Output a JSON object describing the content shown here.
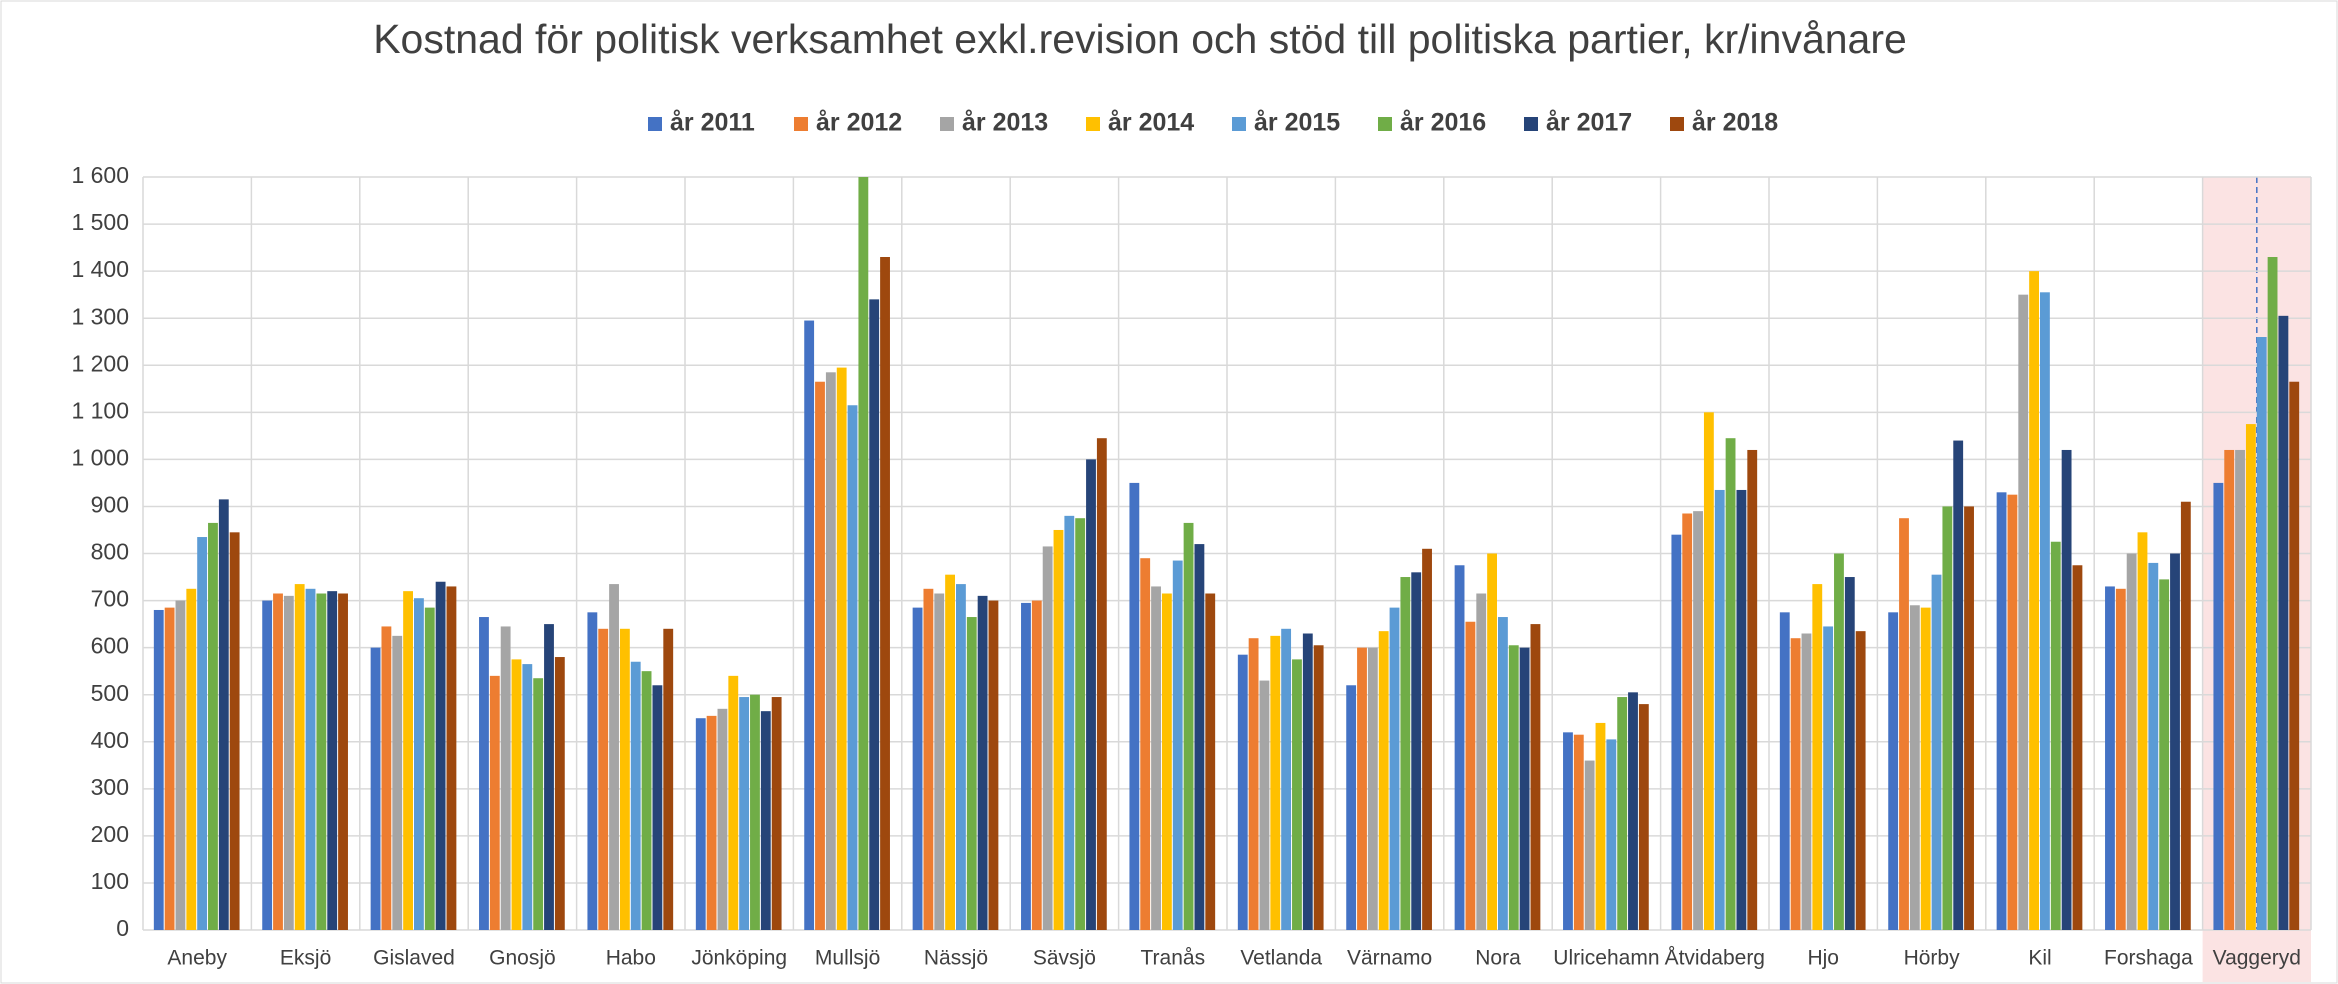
{
  "chart_data": {
    "type": "bar",
    "title": "Kostnad för politisk verksamhet exkl.revision och stöd till politiska partier, kr/invånare",
    "categories": [
      "Aneby",
      "Eksjö",
      "Gislaved",
      "Gnosjö",
      "Habo",
      "Jönköping",
      "Mullsjö",
      "Nässjö",
      "Sävsjö",
      "Tranås",
      "Vetlanda",
      "Värnamo",
      "Nora",
      "Ulricehamn",
      "Åtvidaberg",
      "Hjo",
      "Hörby",
      "Kil",
      "Forshaga",
      "Vaggeryd"
    ],
    "series": [
      {
        "name": "år 2011",
        "color": "#4472c4",
        "values": [
          680,
          700,
          600,
          665,
          675,
          450,
          1295,
          685,
          695,
          950,
          585,
          520,
          775,
          420,
          840,
          675,
          675,
          930,
          730,
          950
        ]
      },
      {
        "name": "år 2012",
        "color": "#ed7d31",
        "values": [
          685,
          715,
          645,
          540,
          640,
          455,
          1165,
          725,
          700,
          790,
          620,
          600,
          655,
          415,
          885,
          620,
          875,
          925,
          725,
          1020
        ]
      },
      {
        "name": "år 2013",
        "color": "#a5a5a5",
        "values": [
          700,
          710,
          625,
          645,
          735,
          470,
          1185,
          715,
          815,
          730,
          530,
          600,
          715,
          360,
          890,
          630,
          690,
          1350,
          800,
          1020
        ]
      },
      {
        "name": "år 2014",
        "color": "#ffc000",
        "values": [
          725,
          735,
          720,
          575,
          640,
          540,
          1195,
          755,
          850,
          715,
          625,
          635,
          800,
          440,
          1100,
          735,
          685,
          1400,
          845,
          1075
        ]
      },
      {
        "name": "år 2015",
        "color": "#5b9bd5",
        "values": [
          835,
          725,
          705,
          565,
          570,
          495,
          1115,
          735,
          880,
          785,
          640,
          685,
          665,
          405,
          935,
          645,
          755,
          1355,
          780,
          1260
        ]
      },
      {
        "name": "år 2016",
        "color": "#70ad47",
        "values": [
          865,
          715,
          685,
          535,
          550,
          500,
          1600,
          665,
          875,
          865,
          575,
          750,
          605,
          495,
          1045,
          800,
          900,
          825,
          745,
          1430
        ]
      },
      {
        "name": "år 2017",
        "color": "#264478",
        "values": [
          915,
          720,
          740,
          650,
          520,
          465,
          1340,
          710,
          1000,
          820,
          630,
          760,
          600,
          505,
          935,
          750,
          1040,
          1020,
          800,
          1305
        ]
      },
      {
        "name": "år 2018",
        "color": "#9e480e",
        "values": [
          845,
          715,
          730,
          580,
          640,
          495,
          1430,
          700,
          1045,
          715,
          605,
          810,
          650,
          480,
          1020,
          635,
          900,
          775,
          910,
          1165
        ]
      }
    ],
    "ylim": [
      0,
      1600
    ],
    "yticks": [
      0,
      100,
      200,
      300,
      400,
      500,
      600,
      700,
      800,
      900,
      {
        "value": 1000,
        "label": "1 000"
      },
      {
        "value": 1100,
        "label": "1 100"
      },
      {
        "value": 1200,
        "label": "1 200"
      },
      {
        "value": 1300,
        "label": "1 300"
      },
      {
        "value": 1400,
        "label": "1 400"
      },
      {
        "value": 1500,
        "label": "1 500"
      },
      {
        "value": 1600,
        "label": "1 600"
      }
    ],
    "grid": true,
    "legend": "top"
  }
}
